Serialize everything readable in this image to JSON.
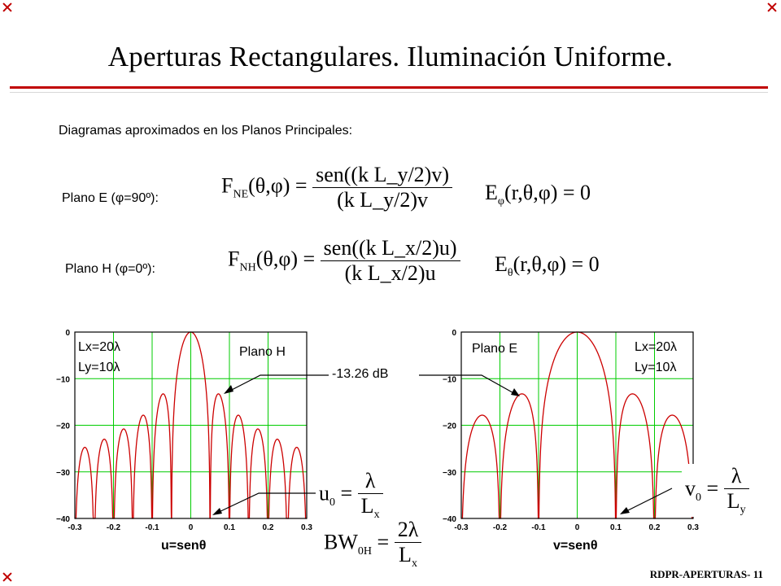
{
  "title": "Aperturas Rectangulares. Iluminación Uniforme.",
  "subtitle": "Diagramas aproximados en los Planos Principales:",
  "plane_e_label": "Plano E (φ=90º):",
  "plane_h_label": "Plano H (φ=0º):",
  "eq_fne_lhs": "F",
  "eq_fne_sub": "NE",
  "eq_fne_args": "(θ,φ) =",
  "eq_fne_num": "sen((k L_y/2)v)",
  "eq_fne_den": "(k L_y/2)v",
  "eq_e_phi": "E",
  "eq_e_phi_sub": "φ",
  "eq_e_phi_rhs": "(r,θ,φ) = 0",
  "eq_fnh_lhs": "F",
  "eq_fnh_sub": "NH",
  "eq_fnh_args": "(θ,φ) =",
  "eq_fnh_num": "sen((k L_x/2)u)",
  "eq_fnh_den": "(k L_x/2)u",
  "eq_e_theta": "E",
  "eq_e_theta_sub": "θ",
  "eq_e_theta_rhs": "(r,θ,φ) = 0",
  "sidelobe_label": "-13.26 dB",
  "u0_lhs": "u",
  "u0_sub": "0",
  "u0_num": "λ",
  "u0_den": "L",
  "u0_den_sub": "x",
  "v0_lhs": "v",
  "v0_sub": "0",
  "v0_num": "λ",
  "v0_den": "L",
  "v0_den_sub": "y",
  "bw_lhs": "BW",
  "bw_sub": "0H",
  "bw_num": "2λ",
  "bw_den": "L",
  "bw_den_sub": "x",
  "footer": "RDPR-APERTURAS- 11",
  "colors": {
    "accent": "#c00000",
    "grid": "#00cc00",
    "curve": "#cc0000"
  },
  "chart_data": [
    {
      "type": "line",
      "title": "",
      "plane_label": "Plano H",
      "param_lines": [
        "Lx=20λ",
        "Ly=10λ"
      ],
      "xlabel": "u=senθ",
      "ylabel": "",
      "xlim": [
        -0.3,
        0.3
      ],
      "ylim": [
        -40,
        0
      ],
      "x_ticks": [
        "-0.3",
        "-0.2",
        "-0.1",
        "0",
        "0.1",
        "0.2",
        "0.3"
      ],
      "y_ticks": [
        "0",
        "-10",
        "-20",
        "-30",
        "-40"
      ],
      "grid": true,
      "function": "20*log10|sin(pi*L*u)/(pi*L*u)|",
      "L_over_lambda": 20,
      "first_sidelobe_db": -13.26
    },
    {
      "type": "line",
      "title": "",
      "plane_label": "Plano E",
      "param_lines": [
        "Lx=20λ",
        "Ly=10λ"
      ],
      "xlabel": "v=senθ",
      "ylabel": "",
      "xlim": [
        -0.3,
        0.3
      ],
      "ylim": [
        -40,
        0
      ],
      "x_ticks": [
        "-0.3",
        "-0.2",
        "-0.1",
        "0",
        "0.1",
        "0.2",
        "0.3"
      ],
      "y_ticks": [
        "0",
        "-10",
        "-20",
        "-30",
        "-40"
      ],
      "grid": true,
      "function": "20*log10|sin(pi*L*v)/(pi*L*v)|",
      "L_over_lambda": 10,
      "first_sidelobe_db": -13.26
    }
  ]
}
